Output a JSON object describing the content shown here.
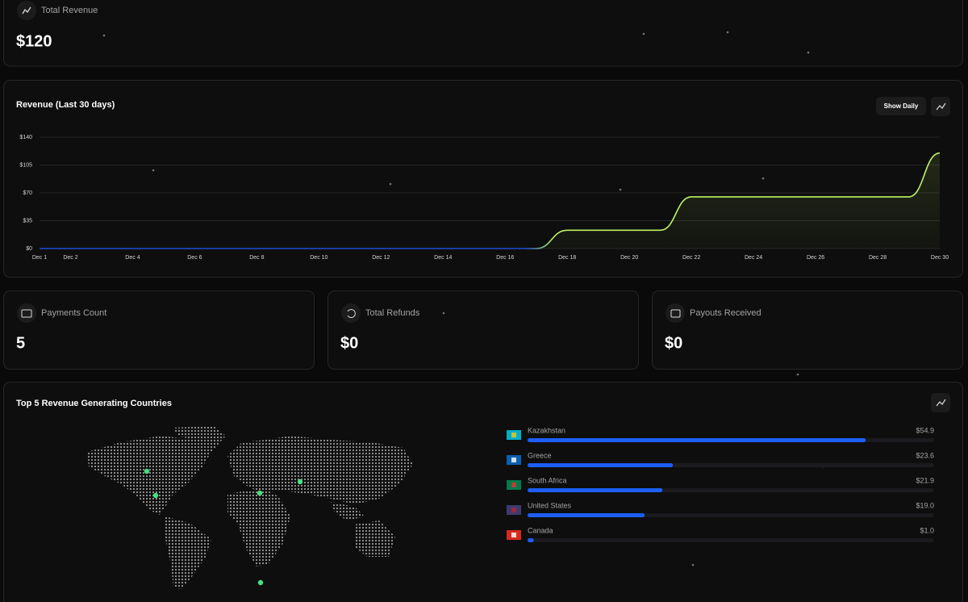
{
  "total_revenue": {
    "label": "Total Revenue",
    "value": "$120"
  },
  "show_daily_button": "Show Daily",
  "stats": [
    {
      "label": "Payments Count",
      "value": 5
    },
    {
      "label": "Total Refunds",
      "value": "$0"
    },
    {
      "label": "Payouts Received",
      "value": "$0"
    }
  ],
  "chart_data": [
    {
      "type": "line",
      "title": "Revenue (Last 30 days)",
      "categories": [
        "Dec 1",
        "Dec 2",
        null,
        "Dec 4",
        null,
        "Dec 6",
        null,
        "Dec 8",
        null,
        "Dec 10",
        null,
        "Dec 12",
        null,
        "Dec 14",
        null,
        "Dec 16",
        null,
        "Dec 18",
        null,
        "Dec 20",
        null,
        "Dec 22",
        null,
        "Dec 24",
        null,
        "Dec 26",
        null,
        "Dec 28",
        null,
        "Dec 30"
      ],
      "values": [
        0,
        0,
        0,
        0,
        0,
        0,
        0,
        0,
        0,
        0,
        0,
        0,
        0,
        0,
        0,
        0,
        0,
        23,
        23,
        23,
        23,
        65,
        65,
        65,
        65,
        65,
        65,
        65,
        65,
        120
      ],
      "ylim": [
        0,
        140
      ],
      "yticks": [
        {
          "value": 0,
          "label": "$0"
        },
        {
          "value": 35,
          "label": "$35"
        },
        {
          "value": 70,
          "label": "$70"
        },
        {
          "value": 105,
          "label": "$105"
        },
        {
          "value": 140,
          "label": "$140"
        }
      ],
      "grid": true,
      "colors": [
        "#1d4ed8",
        "#bef264"
      ]
    },
    {
      "type": "hbar",
      "title": "Top 5 Revenue Generating Countries",
      "categories": [
        "Kazakhstan",
        "Greece",
        "South Africa",
        "United States",
        "Canada"
      ],
      "values": [
        54.9,
        23.6,
        21.9,
        19.0,
        1.0
      ],
      "value_labels": [
        "$54.9",
        "$23.6",
        "$21.9",
        "$19.0",
        "$1.0"
      ],
      "xlim": [
        0,
        66
      ],
      "color": "#1d5ef5"
    }
  ]
}
